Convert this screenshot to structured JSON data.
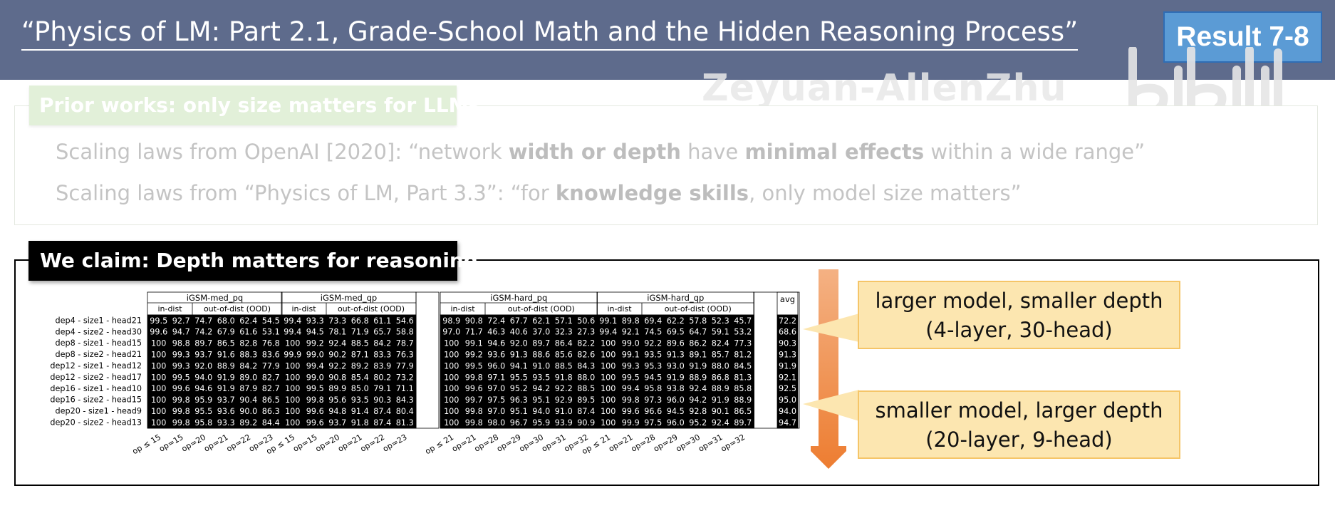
{
  "header": {
    "title": "“Physics of LM: Part 2.1, Grade-School Math and the Hidden Reasoning Process”",
    "result_badge": "Result 7-8",
    "bg_color": "#5e6b8c",
    "badge_color": "#5b9bd5"
  },
  "watermark": {
    "name": "Zeyuan-AllenZhu",
    "logo": "bilibili-logo"
  },
  "prior_works": {
    "label": "Prior works: only size matters for LLMs",
    "line1": {
      "a": "Scaling laws from OpenAI [2020]: “network ",
      "b": "width or depth",
      "c": " have ",
      "d": "minimal effects",
      "e": " within a wide range”"
    },
    "line2": {
      "a": "Scaling laws from “Physics of LM, Part 3.3”: “for ",
      "b": "knowledge skills",
      "c": ", only model size matters”"
    }
  },
  "claim": {
    "label": "We claim: Depth matters for reasoning",
    "arrow_color": "#ed7d31",
    "callout_top": {
      "line1": "larger model, smaller depth",
      "line2": "(4-layer, 30-head)"
    },
    "callout_bottom": {
      "line1": "smaller model, larger depth",
      "line2": "(20-layer, 9-head)"
    }
  },
  "chart_data": {
    "type": "heatmap",
    "colormap": "viridis",
    "row_labels": [
      "dep4 - size1 - head21",
      "dep4 - size2 - head30",
      "dep8 - size1 - head15",
      "dep8 - size2 - head21",
      "dep12 - size1 - head12",
      "dep12 - size2 - head17",
      "dep16 - size1 - head10",
      "dep16 - size2 - head15",
      "dep20 - size1 - head9",
      "dep20 - size2 - head13"
    ],
    "groups": [
      {
        "name": "iGSM-med_pq",
        "subheaders": [
          "in-dist",
          "out-of-dist (OOD)"
        ],
        "columns": [
          "op ≤ 15",
          "op=15",
          "op=20",
          "op=21",
          "op=22",
          "op=23"
        ],
        "values": [
          [
            "99.5",
            "92.7",
            "74.7",
            "68.0",
            "62.4",
            "54.5"
          ],
          [
            "99.6",
            "94.7",
            "74.2",
            "67.9",
            "61.6",
            "53.1"
          ],
          [
            "100",
            "98.8",
            "89.7",
            "86.5",
            "82.8",
            "76.8"
          ],
          [
            "100",
            "99.3",
            "93.7",
            "91.6",
            "88.3",
            "83.6"
          ],
          [
            "100",
            "99.3",
            "92.0",
            "88.9",
            "84.2",
            "77.9"
          ],
          [
            "100",
            "99.5",
            "94.0",
            "91.9",
            "89.0",
            "82.7"
          ],
          [
            "100",
            "99.6",
            "94.6",
            "91.9",
            "87.9",
            "82.7"
          ],
          [
            "100",
            "99.8",
            "95.9",
            "93.7",
            "90.4",
            "86.5"
          ],
          [
            "100",
            "99.8",
            "95.5",
            "93.6",
            "90.0",
            "86.3"
          ],
          [
            "100",
            "99.8",
            "95.8",
            "93.3",
            "89.2",
            "84.4"
          ]
        ]
      },
      {
        "name": "iGSM-med_qp",
        "subheaders": [
          "in-dist",
          "out-of-dist (OOD)"
        ],
        "columns": [
          "op ≤ 15",
          "op=15",
          "op=20",
          "op=21",
          "op=22",
          "op=23"
        ],
        "values": [
          [
            "99.4",
            "93.3",
            "73.3",
            "66.8",
            "61.1",
            "54.6"
          ],
          [
            "99.4",
            "94.5",
            "78.1",
            "71.9",
            "65.7",
            "58.8"
          ],
          [
            "100",
            "99.2",
            "92.4",
            "88.5",
            "84.2",
            "78.7"
          ],
          [
            "99.9",
            "99.0",
            "90.2",
            "87.1",
            "83.3",
            "76.3"
          ],
          [
            "100",
            "99.4",
            "92.2",
            "89.2",
            "83.9",
            "77.9"
          ],
          [
            "100",
            "99.0",
            "90.8",
            "85.4",
            "80.2",
            "73.2"
          ],
          [
            "100",
            "99.5",
            "89.9",
            "85.0",
            "79.1",
            "71.1"
          ],
          [
            "100",
            "99.8",
            "95.6",
            "93.5",
            "90.3",
            "84.3"
          ],
          [
            "100",
            "99.6",
            "94.8",
            "91.4",
            "87.4",
            "80.4"
          ],
          [
            "100",
            "99.6",
            "93.7",
            "91.8",
            "87.4",
            "81.3"
          ]
        ]
      },
      {
        "name": "iGSM-hard_pq",
        "subheaders": [
          "in-dist",
          "out-of-dist (OOD)"
        ],
        "columns": [
          "op ≤ 21",
          "op=21",
          "op=28",
          "op=29",
          "op=30",
          "op=31",
          "op=32"
        ],
        "values": [
          [
            "98.9",
            "90.8",
            "72.4",
            "67.7",
            "62.1",
            "57.1",
            "50.6"
          ],
          [
            "97.0",
            "71.7",
            "46.3",
            "40.6",
            "37.0",
            "32.3",
            "27.3"
          ],
          [
            "100",
            "99.1",
            "94.6",
            "92.0",
            "89.7",
            "86.4",
            "82.2"
          ],
          [
            "100",
            "99.2",
            "93.6",
            "91.3",
            "88.6",
            "85.6",
            "82.6"
          ],
          [
            "100",
            "99.5",
            "96.0",
            "94.1",
            "91.0",
            "88.5",
            "84.3"
          ],
          [
            "100",
            "99.8",
            "97.1",
            "95.5",
            "93.5",
            "91.8",
            "88.0"
          ],
          [
            "100",
            "99.6",
            "97.0",
            "95.2",
            "94.2",
            "92.2",
            "88.5"
          ],
          [
            "100",
            "99.7",
            "97.5",
            "96.3",
            "95.1",
            "92.9",
            "89.5"
          ],
          [
            "100",
            "99.8",
            "97.0",
            "95.1",
            "94.0",
            "91.0",
            "87.4"
          ],
          [
            "100",
            "99.8",
            "98.0",
            "96.7",
            "95.9",
            "93.9",
            "90.9"
          ]
        ]
      },
      {
        "name": "iGSM-hard_qp",
        "subheaders": [
          "in-dist",
          "out-of-dist (OOD)"
        ],
        "columns": [
          "op ≤ 21",
          "op=21",
          "op=28",
          "op=29",
          "op=30",
          "op=31",
          "op=32"
        ],
        "values": [
          [
            "99.1",
            "89.8",
            "69.4",
            "62.2",
            "57.8",
            "52.3",
            "45.7"
          ],
          [
            "99.4",
            "92.1",
            "74.5",
            "69.5",
            "64.7",
            "59.1",
            "53.2"
          ],
          [
            "100",
            "99.0",
            "92.2",
            "89.6",
            "86.2",
            "82.4",
            "77.3"
          ],
          [
            "100",
            "99.1",
            "93.5",
            "91.3",
            "89.1",
            "85.7",
            "81.2"
          ],
          [
            "100",
            "99.3",
            "95.3",
            "93.0",
            "91.9",
            "88.0",
            "84.5"
          ],
          [
            "100",
            "99.5",
            "94.5",
            "91.9",
            "88.9",
            "86.8",
            "81.3"
          ],
          [
            "100",
            "99.4",
            "95.8",
            "93.8",
            "92.4",
            "88.9",
            "85.8"
          ],
          [
            "100",
            "99.8",
            "97.3",
            "96.0",
            "94.2",
            "91.9",
            "88.9"
          ],
          [
            "100",
            "99.6",
            "96.6",
            "94.5",
            "92.8",
            "90.1",
            "86.5"
          ],
          [
            "100",
            "99.9",
            "97.5",
            "96.0",
            "95.2",
            "92.4",
            "89.7"
          ]
        ]
      }
    ],
    "avg": {
      "label": "avg",
      "values": [
        "72.2",
        "68.6",
        "90.3",
        "91.3",
        "91.9",
        "92.1",
        "92.5",
        "95.0",
        "94.0",
        "94.7"
      ]
    },
    "color_range": [
      27,
      100
    ]
  }
}
